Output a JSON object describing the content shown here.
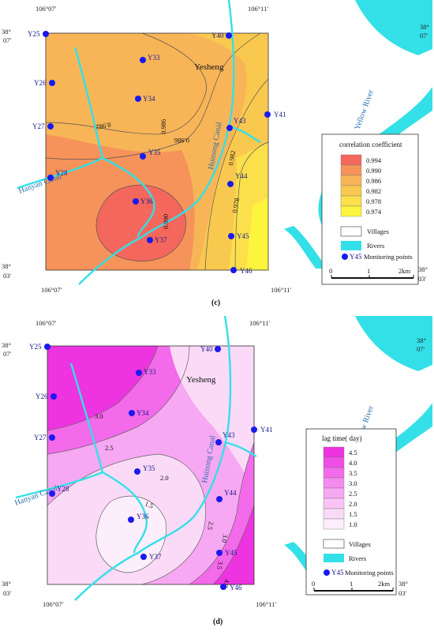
{
  "panel_c": {
    "caption": "(c)",
    "coord_top_left": "106°07′",
    "coord_top_right": "106°11′",
    "coord_bottom_left": "106°07′",
    "coord_bottom_right": "106°11′",
    "lat_top_left": "38°\n07′",
    "lat_top_right": "38°\n07′",
    "lat_bottom_left": "38°\n03′",
    "lat_bottom_right": "38°\n03′",
    "town": "Yesheng",
    "canal_left": "Hanyan Canal",
    "canal_mid": "Huinong Canal",
    "river": "Yellow River",
    "points": [
      "Y25",
      "Y26",
      "Y27",
      "Y28",
      "Y33",
      "Y34",
      "Y35",
      "Y36",
      "Y37",
      "Y40",
      "Y41",
      "Y43",
      "Y44",
      "Y45",
      "Y46"
    ],
    "contours": [
      "0.982",
      "0.986",
      "0.986",
      "0.982",
      "0.978",
      "0.990"
    ],
    "legend": {
      "title": "correlation coefficient",
      "items": [
        "0.994",
        "0.990",
        "0.986",
        "0.982",
        "0.978",
        "0.974"
      ],
      "colors": [
        "#f4675d",
        "#f6935a",
        "#f7b558",
        "#f9c94f",
        "#fbe04c",
        "#fdf43e"
      ],
      "villages": "Villages",
      "rivers": "Rivers",
      "monitoring": "Monitoring points",
      "monitoring_sample": "Y45",
      "scale": [
        "0",
        "1",
        "2km"
      ]
    }
  },
  "panel_d": {
    "caption": "(d)",
    "coord_top_left": "106°07′",
    "coord_top_right": "106°11′",
    "coord_bottom_left": "106°07′",
    "coord_bottom_right": "106°11′",
    "town": "Yesheng",
    "canal_left": "Hanyan Canal",
    "canal_mid": "Huinong Canal",
    "river": "Yellow River",
    "contours": [
      "3.0",
      "2.5",
      "2.0",
      "1.5",
      "2.5",
      "3.0",
      "3.5",
      "4.0"
    ],
    "legend": {
      "title": "lag time( day)",
      "items": [
        "4.5",
        "4.0",
        "3.5",
        "3.0",
        "2.5",
        "2.0",
        "1.5",
        "1.0"
      ],
      "colors": [
        "#ee33e0",
        "#f04de6",
        "#f36aea",
        "#f58aee",
        "#f7a8f2",
        "#f9c3f5",
        "#fbdaf8",
        "#fdeefc"
      ],
      "villages": "Villages",
      "rivers": "Rivers",
      "monitoring": "Monitoring points",
      "monitoring_sample": "Y45",
      "scale": [
        "0",
        "1",
        "2km"
      ]
    }
  }
}
